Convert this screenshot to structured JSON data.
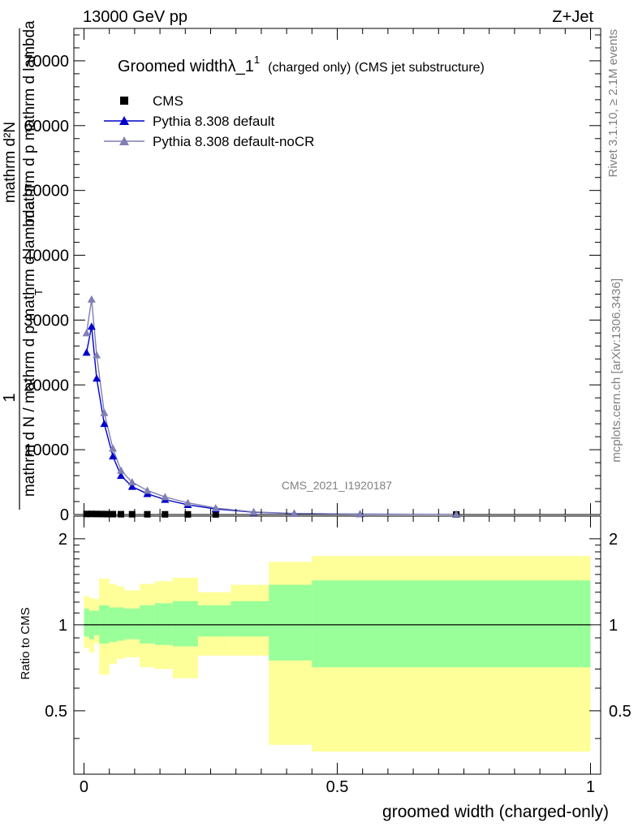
{
  "header": {
    "left": "13000 GeV pp",
    "right": "Z+Jet"
  },
  "side_labels": {
    "rivet": "Rivet 3.1.10, ≥ 2.1M events",
    "mcplots": "mcplots.cern.ch [arXiv:1306.3436]"
  },
  "main_panel": {
    "title_main": "Groomed widthλ_1",
    "title_sup": "1",
    "title_sub": "(charged only) (CMS jet substructure)",
    "ylabel_numerator": "1",
    "ylabel_line1": "mathrm d²N",
    "ylabel_line2": "mathrm d p  mathrm d lambda",
    "ylabel_line3": "mathrm d N / mathrm d p  mathrm d lambda",
    "ylabel_subscript": "T",
    "watermark": "CMS_2021_I1920187",
    "y_ticks": [
      {
        "value": 0,
        "label": "0"
      },
      {
        "value": 10000,
        "label": "10000"
      },
      {
        "value": 20000,
        "label": "20000"
      },
      {
        "value": 30000,
        "label": "30000"
      },
      {
        "value": 40000,
        "label": "40000"
      },
      {
        "value": 50000,
        "label": "50000"
      },
      {
        "value": 60000,
        "label": "60000"
      },
      {
        "value": 70000,
        "label": "70000"
      }
    ]
  },
  "ratio_panel": {
    "ylabel": "Ratio to CMS",
    "y_ticks": [
      {
        "value": 0.5,
        "label": "0.5"
      },
      {
        "value": 1,
        "label": "1"
      },
      {
        "value": 2,
        "label": "2"
      }
    ]
  },
  "x_axis": {
    "label": "groomed width (charged-only)",
    "ticks": [
      {
        "value": 0,
        "label": "0"
      },
      {
        "value": 0.5,
        "label": "0.5"
      },
      {
        "value": 1,
        "label": "1"
      }
    ]
  },
  "legend": [
    {
      "name": "CMS",
      "color": "#000000",
      "marker": "square"
    },
    {
      "name": "Pythia 8.308 default",
      "color": "#0000cc",
      "marker": "triangle"
    },
    {
      "name": "Pythia 8.308 default-noCR",
      "color": "#7f7fb2",
      "marker": "triangle"
    }
  ],
  "chart_data": {
    "type": "line",
    "xlim": [
      -0.02,
      1.02
    ],
    "ylim_main": [
      0,
      75000
    ],
    "ylim_ratio": [
      0.3,
      2.4
    ],
    "ratio_log_scale": true,
    "series": [
      {
        "name": "CMS",
        "color": "#000000",
        "x": [
          0.005,
          0.015,
          0.025,
          0.035,
          0.045,
          0.057,
          0.073,
          0.095,
          0.125,
          0.16,
          0.205,
          0.26,
          0.735
        ],
        "y": [
          80,
          90,
          80,
          70,
          60,
          55,
          45,
          40,
          35,
          28,
          22,
          15,
          2
        ]
      },
      {
        "name": "Pythia 8.308 default",
        "color": "#0000cc",
        "x": [
          0.005,
          0.015,
          0.025,
          0.04,
          0.057,
          0.073,
          0.095,
          0.125,
          0.16,
          0.205,
          0.26,
          0.335,
          0.415,
          0.545,
          0.735
        ],
        "y": [
          25000,
          29000,
          21000,
          14000,
          9000,
          6000,
          4300,
          3200,
          2300,
          1500,
          850,
          350,
          150,
          60,
          20
        ]
      },
      {
        "name": "Pythia 8.308 default-noCR",
        "color": "#7f7fb2",
        "x": [
          0.005,
          0.015,
          0.025,
          0.04,
          0.057,
          0.073,
          0.095,
          0.125,
          0.16,
          0.205,
          0.26,
          0.335,
          0.415,
          0.545,
          0.735
        ],
        "y": [
          28000,
          33200,
          24600,
          15700,
          10200,
          6800,
          5000,
          3700,
          2700,
          1800,
          1000,
          400,
          170,
          70,
          25
        ]
      }
    ],
    "ratio_bands": [
      {
        "x0": 0.0,
        "x1": 0.01,
        "stat_lo": 0.91,
        "stat_hi": 1.14,
        "tot_lo": 0.83,
        "tot_hi": 1.26
      },
      {
        "x0": 0.01,
        "x1": 0.02,
        "stat_lo": 0.89,
        "stat_hi": 1.12,
        "tot_lo": 0.8,
        "tot_hi": 1.24
      },
      {
        "x0": 0.02,
        "x1": 0.03,
        "stat_lo": 0.92,
        "stat_hi": 1.12,
        "tot_lo": 0.86,
        "tot_hi": 1.23
      },
      {
        "x0": 0.03,
        "x1": 0.05,
        "stat_lo": 0.86,
        "stat_hi": 1.17,
        "tot_lo": 0.67,
        "tot_hi": 1.45
      },
      {
        "x0": 0.05,
        "x1": 0.065,
        "stat_lo": 0.87,
        "stat_hi": 1.15,
        "tot_lo": 0.73,
        "tot_hi": 1.39
      },
      {
        "x0": 0.065,
        "x1": 0.08,
        "stat_lo": 0.88,
        "stat_hi": 1.15,
        "tot_lo": 0.76,
        "tot_hi": 1.36
      },
      {
        "x0": 0.08,
        "x1": 0.11,
        "stat_lo": 0.89,
        "stat_hi": 1.14,
        "tot_lo": 0.77,
        "tot_hi": 1.32
      },
      {
        "x0": 0.11,
        "x1": 0.14,
        "stat_lo": 0.86,
        "stat_hi": 1.17,
        "tot_lo": 0.71,
        "tot_hi": 1.39
      },
      {
        "x0": 0.14,
        "x1": 0.175,
        "stat_lo": 0.85,
        "stat_hi": 1.19,
        "tot_lo": 0.7,
        "tot_hi": 1.42
      },
      {
        "x0": 0.175,
        "x1": 0.225,
        "stat_lo": 0.84,
        "stat_hi": 1.21,
        "tot_lo": 0.65,
        "tot_hi": 1.46
      },
      {
        "x0": 0.225,
        "x1": 0.29,
        "stat_lo": 0.91,
        "stat_hi": 1.17,
        "tot_lo": 0.78,
        "tot_hi": 1.3
      },
      {
        "x0": 0.29,
        "x1": 0.365,
        "stat_lo": 0.91,
        "stat_hi": 1.21,
        "tot_lo": 0.78,
        "tot_hi": 1.38
      },
      {
        "x0": 0.365,
        "x1": 0.45,
        "stat_lo": 0.75,
        "stat_hi": 1.38,
        "tot_lo": 0.38,
        "tot_hi": 1.66
      },
      {
        "x0": 0.45,
        "x1": 1.0,
        "stat_lo": 0.71,
        "stat_hi": 1.43,
        "tot_lo": 0.36,
        "tot_hi": 1.74
      }
    ]
  }
}
